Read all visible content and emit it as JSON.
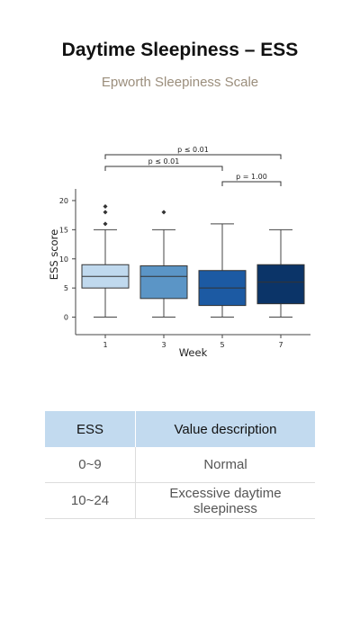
{
  "page": {
    "title": "Daytime Sleepiness – ESS",
    "subtitle": "Epworth Sleepiness Scale"
  },
  "chart_data": {
    "type": "box",
    "xlabel": "Week",
    "ylabel": "ESS score",
    "categories": [
      "1",
      "3",
      "5",
      "7"
    ],
    "ylim": [
      -3,
      22
    ],
    "yticks": [
      0,
      5,
      10,
      15,
      20
    ],
    "grid": false,
    "boxes": [
      {
        "category": "1",
        "whisker_low": 0,
        "q1": 5,
        "median": 7,
        "q3": 9,
        "whisker_high": 15,
        "outliers": [
          16,
          18,
          19
        ],
        "color": "#c0d9ee"
      },
      {
        "category": "3",
        "whisker_low": 0,
        "q1": 3.2,
        "median": 7,
        "q3": 8.8,
        "whisker_high": 15,
        "outliers": [
          18
        ],
        "color": "#5b95c6"
      },
      {
        "category": "5",
        "whisker_low": 0,
        "q1": 2,
        "median": 5,
        "q3": 8,
        "whisker_high": 16,
        "outliers": [],
        "color": "#1c5aa3"
      },
      {
        "category": "7",
        "whisker_low": 0,
        "q1": 2.3,
        "median": 6,
        "q3": 9,
        "whisker_high": 15,
        "outliers": [],
        "color": "#0b3468"
      }
    ],
    "significance": [
      {
        "from": "1",
        "to": "7",
        "label": "p ≤ 0.01"
      },
      {
        "from": "1",
        "to": "5",
        "label": "p ≤ 0.01"
      },
      {
        "from": "5",
        "to": "7",
        "label": "p = 1.00"
      }
    ]
  },
  "table": {
    "headers": [
      "ESS",
      "Value description"
    ],
    "rows": [
      [
        "0~9",
        "Normal"
      ],
      [
        "10~24",
        "Excessive daytime sleepiness"
      ]
    ]
  }
}
